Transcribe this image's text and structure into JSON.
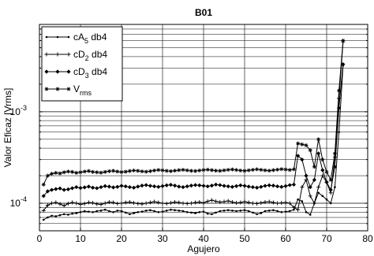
{
  "chart_data": {
    "type": "line",
    "title": "B01",
    "xlabel": "Agujero",
    "ylabel": "Valor Eficaz [Vrms]",
    "xlim": [
      0,
      80
    ],
    "ylim": [
      5e-05,
      0.009
    ],
    "yscale": "log",
    "grid": true,
    "legend_position": "top-left",
    "x_ticks": [
      0,
      10,
      20,
      30,
      40,
      50,
      60,
      70,
      80
    ],
    "x_tick_labels": [
      "0",
      "10",
      "20",
      "30",
      "40",
      "50",
      "60",
      "70",
      "80"
    ],
    "y_ticks": [
      {
        "value": 0.0001,
        "base": "10",
        "exp": "-4"
      },
      {
        "value": 0.001,
        "base": "10",
        "exp": "-3"
      }
    ],
    "series": [
      {
        "name": "cA",
        "name_sub": "5",
        "name_suffix": " db4",
        "marker": "dot",
        "x": [
          1,
          2,
          3,
          4,
          5,
          6,
          7,
          8,
          9,
          10,
          11,
          12,
          13,
          14,
          15,
          16,
          17,
          18,
          19,
          20,
          21,
          22,
          23,
          24,
          25,
          26,
          27,
          28,
          29,
          30,
          31,
          32,
          33,
          34,
          35,
          36,
          37,
          38,
          39,
          40,
          41,
          42,
          43,
          44,
          45,
          46,
          47,
          48,
          49,
          50,
          51,
          52,
          53,
          54,
          55,
          56,
          57,
          58,
          59,
          60,
          61,
          62,
          63,
          64,
          65,
          66,
          67,
          68,
          69,
          70,
          71,
          72,
          73,
          74
        ],
        "values": [
          6.6e-05,
          7e-05,
          7.3e-05,
          7.2e-05,
          7.4e-05,
          7.6e-05,
          7.5e-05,
          7.7e-05,
          7.8e-05,
          8e-05,
          8.2e-05,
          8.1e-05,
          8e-05,
          8.2e-05,
          8.3e-05,
          8.5e-05,
          8.2e-05,
          8e-05,
          8.3e-05,
          8.2e-05,
          7.9e-05,
          7.6e-05,
          7.8e-05,
          8e-05,
          8.1e-05,
          8.3e-05,
          8.4e-05,
          8.2e-05,
          8e-05,
          8.1e-05,
          8.3e-05,
          8.5e-05,
          8.4e-05,
          8.3e-05,
          8.2e-05,
          8e-05,
          7.9e-05,
          7.8e-05,
          8e-05,
          8.1e-05,
          7.7e-05,
          7.6e-05,
          7.9e-05,
          8.2e-05,
          8.3e-05,
          8.4e-05,
          8.3e-05,
          8.2e-05,
          8.3e-05,
          8.4e-05,
          8.2e-05,
          7.9e-05,
          7.6e-05,
          7.8e-05,
          8.2e-05,
          8.3e-05,
          8.4e-05,
          8.2e-05,
          8e-05,
          8.1e-05,
          8.2e-05,
          8.5e-05,
          0.00011,
          0.000105,
          8e-05,
          7.5e-05,
          0.0001,
          0.00013,
          0.00012,
          0.00011,
          0.0001,
          0.00015,
          0.0006,
          0.0032
        ]
      },
      {
        "name": "cD",
        "name_sub": "2",
        "name_suffix": " db4",
        "marker": "plus",
        "x": [
          1,
          2,
          3,
          4,
          5,
          6,
          7,
          8,
          9,
          10,
          11,
          12,
          13,
          14,
          15,
          16,
          17,
          18,
          19,
          20,
          21,
          22,
          23,
          24,
          25,
          26,
          27,
          28,
          29,
          30,
          31,
          32,
          33,
          34,
          35,
          36,
          37,
          38,
          39,
          40,
          41,
          42,
          43,
          44,
          45,
          46,
          47,
          48,
          49,
          50,
          51,
          52,
          53,
          54,
          55,
          56,
          57,
          58,
          59,
          60,
          61,
          62,
          63,
          64,
          65,
          66,
          67,
          68,
          69,
          70,
          71,
          72,
          73,
          74
        ],
        "values": [
          8.3e-05,
          9.5e-05,
          0.0001,
          0.000102,
          9.8e-05,
          9.4e-05,
          9.9e-05,
          0.000102,
          0.0001,
          9.7e-05,
          9.9e-05,
          0.000102,
          0.000101,
          9.8e-05,
          9.7e-05,
          0.0001,
          0.000103,
          0.000102,
          9.9e-05,
          0.0001,
          0.000102,
          0.000103,
          0.000101,
          9.9e-05,
          9.8e-05,
          0.0001,
          0.000102,
          0.000104,
          0.000102,
          0.0001,
          9.9e-05,
          0.000101,
          0.000103,
          0.000102,
          0.0001,
          9.9e-05,
          0.0001,
          0.000102,
          0.000103,
          0.000101,
          0.000105,
          0.000108,
          0.000105,
          0.000103,
          0.000104,
          0.000106,
          0.000103,
          0.000101,
          0.000102,
          0.000104,
          0.000102,
          0.0001,
          9.9e-05,
          0.000101,
          0.000103,
          0.000104,
          0.000102,
          0.0001,
          0.000101,
          0.000102,
          0.0001,
          9e-05,
          8.5e-05,
          0.00015,
          0.00018,
          0.00012,
          0.0001,
          0.00015,
          0.0002,
          0.00017,
          0.00013,
          0.00032,
          0.0014,
          0.0058
        ]
      },
      {
        "name": "cD",
        "name_sub": "3",
        "name_suffix": " db4",
        "marker": "diamond",
        "x": [
          1,
          2,
          3,
          4,
          5,
          6,
          7,
          8,
          9,
          10,
          11,
          12,
          13,
          14,
          15,
          16,
          17,
          18,
          19,
          20,
          21,
          22,
          23,
          24,
          25,
          26,
          27,
          28,
          29,
          30,
          31,
          32,
          33,
          34,
          35,
          36,
          37,
          38,
          39,
          40,
          41,
          42,
          43,
          44,
          45,
          46,
          47,
          48,
          49,
          50,
          51,
          52,
          53,
          54,
          55,
          56,
          57,
          58,
          59,
          60,
          61,
          62,
          63,
          64,
          65,
          66,
          67,
          68,
          69,
          70,
          71,
          72,
          73,
          74
        ],
        "values": [
          0.00012,
          0.000135,
          0.00014,
          0.000143,
          0.000145,
          0.00014,
          0.000142,
          0.000146,
          0.00015,
          0.000147,
          0.000149,
          0.000152,
          0.000148,
          0.000146,
          0.00015,
          0.000154,
          0.000152,
          0.000149,
          0.000151,
          0.000155,
          0.000153,
          0.00015,
          0.000148,
          0.000152,
          0.000156,
          0.000158,
          0.000155,
          0.000153,
          0.000151,
          0.000154,
          0.000157,
          0.000159,
          0.000156,
          0.000152,
          0.00015,
          0.000153,
          0.000156,
          0.000158,
          0.000157,
          0.000155,
          0.000153,
          0.000156,
          0.00016,
          0.000158,
          0.000155,
          0.000153,
          0.000151,
          0.000154,
          0.000157,
          0.000155,
          0.000152,
          0.00015,
          0.000148,
          0.000151,
          0.000155,
          0.000157,
          0.000156,
          0.000153,
          0.000151,
          0.000154,
          0.000158,
          0.00016,
          0.00033,
          0.0003,
          0.0002,
          0.00015,
          0.00018,
          0.00035,
          0.00023,
          0.00017,
          0.00014,
          0.00025,
          0.0011,
          0.0033
        ]
      },
      {
        "name": "V",
        "name_sub": "rms",
        "name_suffix": "",
        "marker": "star",
        "x": [
          1,
          2,
          3,
          4,
          5,
          6,
          7,
          8,
          9,
          10,
          11,
          12,
          13,
          14,
          15,
          16,
          17,
          18,
          19,
          20,
          21,
          22,
          23,
          24,
          25,
          26,
          27,
          28,
          29,
          30,
          31,
          32,
          33,
          34,
          35,
          36,
          37,
          38,
          39,
          40,
          41,
          42,
          43,
          44,
          45,
          46,
          47,
          48,
          49,
          50,
          51,
          52,
          53,
          54,
          55,
          56,
          57,
          58,
          59,
          60,
          61,
          62,
          63,
          64,
          65,
          66,
          67,
          68,
          69,
          70,
          71,
          72,
          73,
          74
        ],
        "values": [
          0.00016,
          0.0002,
          0.00021,
          0.000215,
          0.000212,
          0.000218,
          0.000222,
          0.00022,
          0.000215,
          0.000218,
          0.000222,
          0.000225,
          0.00022,
          0.000218,
          0.000216,
          0.00022,
          0.000224,
          0.000226,
          0.000222,
          0.000219,
          0.000221,
          0.000225,
          0.000228,
          0.000226,
          0.000223,
          0.000221,
          0.000224,
          0.000228,
          0.000231,
          0.000229,
          0.000226,
          0.000224,
          0.000227,
          0.00023,
          0.000232,
          0.000229,
          0.000226,
          0.000225,
          0.000228,
          0.000231,
          0.000233,
          0.00023,
          0.000227,
          0.000226,
          0.000229,
          0.000232,
          0.000234,
          0.000231,
          0.000228,
          0.000226,
          0.000229,
          0.000232,
          0.000235,
          0.000232,
          0.000229,
          0.000227,
          0.00023,
          0.000233,
          0.000236,
          0.000234,
          0.000231,
          0.000235,
          0.00045,
          0.00044,
          0.00043,
          0.00038,
          0.00025,
          0.0005,
          0.0003,
          0.00022,
          0.00018,
          0.00035,
          0.0017,
          0.006
        ]
      }
    ]
  }
}
